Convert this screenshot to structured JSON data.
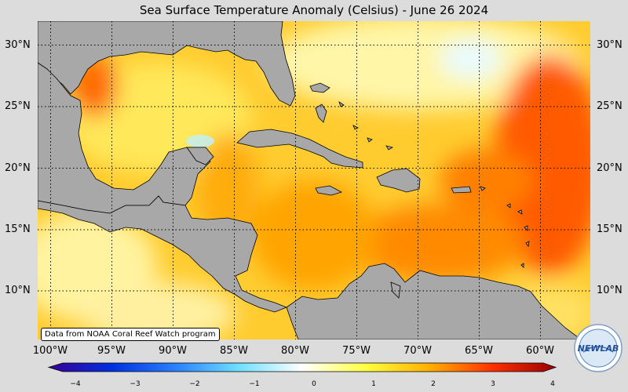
{
  "title": "Sea Surface Temperature Anomaly (Celsius) - June 26 2024",
  "lat_labels": [
    "30°N",
    "25°N",
    "20°N",
    "15°N",
    "10°N"
  ],
  "lon_labels": [
    "100°W",
    "95°W",
    "90°W",
    "85°W",
    "80°W",
    "75°W",
    "70°W",
    "65°W",
    "60°W"
  ],
  "credit": "Data from NOAA Coral Reef Watch program",
  "logo_text": "NEWLAB",
  "colorbar": {
    "ticks": [
      "−4",
      "−3",
      "−2",
      "−1",
      "0",
      "1",
      "2",
      "3",
      "4"
    ],
    "colors": [
      "#3a0096",
      "#0030e0",
      "#2a80ff",
      "#6fe0ff",
      "#ffffff",
      "#ffff40",
      "#ffb000",
      "#ff3000",
      "#9a0000"
    ]
  },
  "colors": {
    "land": "#a8a8a8",
    "background": "#dcdcdc",
    "warm": "#ff8c00",
    "hot": "#ff2000",
    "mild": "#ffe048"
  }
}
